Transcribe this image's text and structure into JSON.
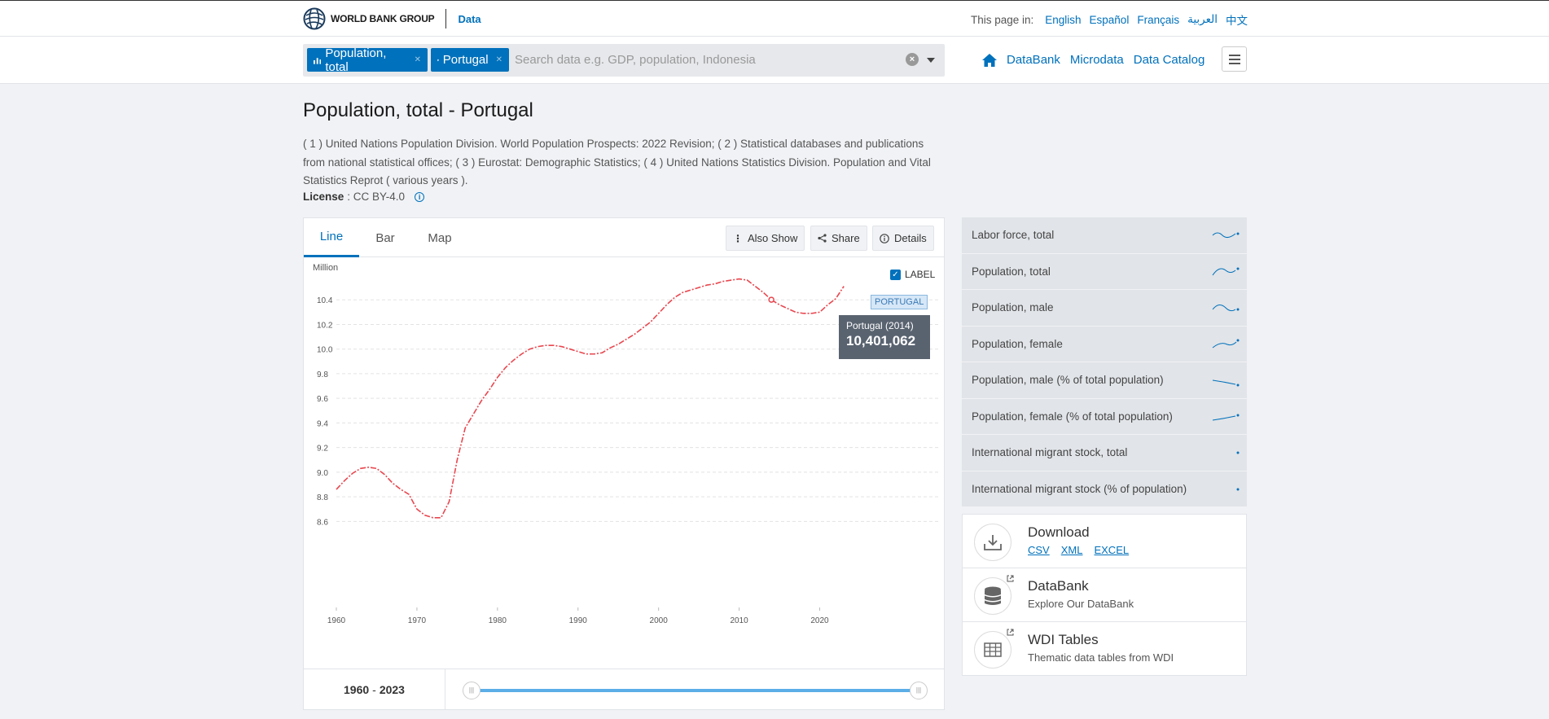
{
  "header": {
    "brand": "WORLD BANK GROUP",
    "section": "Data",
    "lang_label": "This page in:",
    "languages": [
      "English",
      "Español",
      "Français",
      "العربية",
      "中文"
    ]
  },
  "search": {
    "chips": [
      "Population, total",
      "Portugal"
    ],
    "placeholder": "Search data e.g. GDP, population, Indonesia"
  },
  "nav": {
    "links": [
      "DataBank",
      "Microdata",
      "Data Catalog"
    ]
  },
  "page": {
    "title": "Population, total - Portugal",
    "source": "( 1 ) United Nations Population Division. World Population Prospects: 2022 Revision; ( 2 ) Statistical databases and publications from national statistical offices; ( 3 ) Eurostat: Demographic Statistics; ( 4 ) United Nations Statistics Division. Population and Vital Statistics Reprot ( various years ).",
    "license_label": "License",
    "license_value": ": CC BY-4.0"
  },
  "chart_tabs": [
    "Line",
    "Bar",
    "Map"
  ],
  "chart_buttons": [
    "Also Show",
    "Share",
    "Details"
  ],
  "chart_ui": {
    "unit": "Million",
    "label_toggle": "LABEL",
    "series_tag": "PORTUGAL",
    "tooltip_name": "Portugal (2014)",
    "tooltip_value": "10,401,062",
    "range_start": "1960",
    "range_sep": "-",
    "range_end": "2023"
  },
  "chart_data": {
    "type": "line",
    "title": "Population, total - Portugal",
    "xlabel": "",
    "ylabel": "Million",
    "x_ticks": [
      1960,
      1970,
      1980,
      1990,
      2000,
      2010,
      2020
    ],
    "y_ticks": [
      8.6,
      8.8,
      9.0,
      9.2,
      9.4,
      9.6,
      9.8,
      10.0,
      10.2,
      10.4
    ],
    "xlim": [
      1960,
      2023
    ],
    "ylim": [
      8.45,
      10.6
    ],
    "series": [
      {
        "name": "Portugal",
        "color": "#e8474f",
        "x": [
          1960,
          1961,
          1962,
          1963,
          1964,
          1965,
          1966,
          1967,
          1968,
          1969,
          1970,
          1971,
          1972,
          1973,
          1974,
          1975,
          1976,
          1977,
          1978,
          1979,
          1980,
          1981,
          1982,
          1983,
          1984,
          1985,
          1986,
          1987,
          1988,
          1989,
          1990,
          1991,
          1992,
          1993,
          1994,
          1995,
          1996,
          1997,
          1998,
          1999,
          2000,
          2001,
          2002,
          2003,
          2004,
          2005,
          2006,
          2007,
          2008,
          2009,
          2010,
          2011,
          2012,
          2013,
          2014,
          2015,
          2016,
          2017,
          2018,
          2019,
          2020,
          2021,
          2022,
          2023
        ],
        "values": [
          8.86,
          8.93,
          8.99,
          9.03,
          9.04,
          9.03,
          8.98,
          8.91,
          8.86,
          8.82,
          8.7,
          8.65,
          8.63,
          8.63,
          8.76,
          9.1,
          9.36,
          9.47,
          9.58,
          9.67,
          9.77,
          9.85,
          9.91,
          9.96,
          10.0,
          10.02,
          10.03,
          10.03,
          10.02,
          10.0,
          9.98,
          9.96,
          9.96,
          9.97,
          10.01,
          10.04,
          10.08,
          10.12,
          10.17,
          10.22,
          10.29,
          10.36,
          10.42,
          10.46,
          10.48,
          10.5,
          10.52,
          10.53,
          10.55,
          10.56,
          10.57,
          10.56,
          10.51,
          10.46,
          10.4,
          10.36,
          10.33,
          10.3,
          10.29,
          10.29,
          10.3,
          10.36,
          10.41,
          10.51
        ]
      }
    ],
    "highlight": {
      "x": 2014,
      "y": 10.401062
    }
  },
  "related": [
    "Labor force, total",
    "Population, total",
    "Population, male",
    "Population, female",
    "Population, male (% of total population)",
    "Population, female (% of total population)",
    "International migrant stock, total",
    "International migrant stock (% of population)"
  ],
  "download": {
    "title": "Download",
    "formats": [
      "CSV",
      "XML",
      "EXCEL"
    ]
  },
  "databank": {
    "title": "DataBank",
    "sub": "Explore Our DataBank"
  },
  "wdi": {
    "title": "WDI Tables",
    "sub": "Thematic data tables from WDI"
  },
  "colors": {
    "accent": "#0071bc",
    "line": "#e8474f"
  }
}
